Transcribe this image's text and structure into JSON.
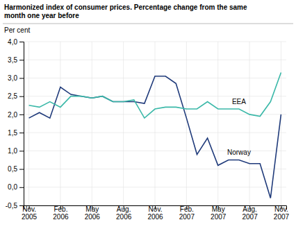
{
  "chart_data": {
    "type": "line",
    "title": "Harmonized index of consumer prices. Percentage change from the same\nmonth one year before",
    "y_label": "Per cent",
    "categories": [
      "Nov.\n2005",
      null,
      null,
      "Feb.\n2006",
      null,
      null,
      "May\n2006",
      null,
      null,
      "Aug.\n2006",
      null,
      null,
      "Nov.\n2006",
      null,
      null,
      "Feb.\n2007",
      null,
      null,
      "May\n2007",
      null,
      null,
      "Aug.\n2007",
      null,
      null,
      "Nov.\n2007"
    ],
    "series": [
      {
        "name": "Norway",
        "color": "#1f3a7a",
        "values": [
          1.9,
          2.05,
          1.9,
          2.75,
          2.55,
          2.5,
          2.45,
          2.5,
          2.35,
          2.35,
          2.35,
          2.3,
          3.05,
          3.05,
          2.85,
          1.9,
          0.9,
          1.35,
          0.6,
          0.75,
          0.75,
          0.65,
          0.65,
          -0.3,
          2.0
        ]
      },
      {
        "name": "EEA",
        "color": "#3ab8a8",
        "values": [
          2.25,
          2.2,
          2.35,
          2.2,
          2.5,
          2.5,
          2.45,
          2.5,
          2.35,
          2.35,
          2.4,
          1.9,
          2.15,
          2.2,
          2.2,
          2.15,
          2.15,
          2.35,
          2.15,
          2.15,
          2.15,
          2.0,
          1.95,
          2.35,
          3.15
        ]
      }
    ],
    "ylim": [
      -0.5,
      4.0
    ],
    "yticks": [
      {
        "value": -0.5,
        "label": "-0,5"
      },
      {
        "value": 0.0,
        "label": "0,0"
      },
      {
        "value": 0.5,
        "label": "0,5"
      },
      {
        "value": 1.0,
        "label": "1,0"
      },
      {
        "value": 1.5,
        "label": "1,5"
      },
      {
        "value": 2.0,
        "label": "2,0"
      },
      {
        "value": 2.5,
        "label": "2,5"
      },
      {
        "value": 3.0,
        "label": "3,0"
      },
      {
        "value": 3.5,
        "label": "3,5"
      },
      {
        "value": 4.0,
        "label": "4,0"
      }
    ],
    "grid": true
  }
}
